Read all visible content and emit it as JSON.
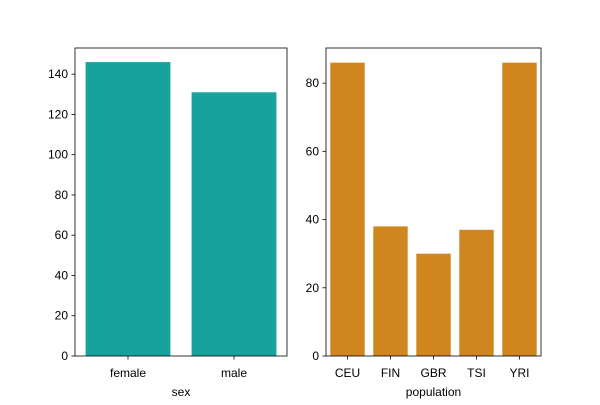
{
  "chart_data": [
    {
      "type": "bar",
      "xlabel": "sex",
      "ylabel": "",
      "categories": [
        "female",
        "male"
      ],
      "values": [
        146,
        131
      ],
      "ylim": [
        0,
        153
      ],
      "yticks": [
        0,
        20,
        40,
        60,
        80,
        100,
        120,
        140
      ],
      "color": "#17a39b",
      "grid": false
    },
    {
      "type": "bar",
      "xlabel": "population",
      "ylabel": "",
      "categories": [
        "CEU",
        "FIN",
        "GBR",
        "TSI",
        "YRI"
      ],
      "values": [
        86,
        38,
        30,
        37,
        86
      ],
      "ylim": [
        0,
        90.3
      ],
      "yticks": [
        0,
        20,
        40,
        60,
        80
      ],
      "color": "#d0861e",
      "grid": false
    }
  ]
}
